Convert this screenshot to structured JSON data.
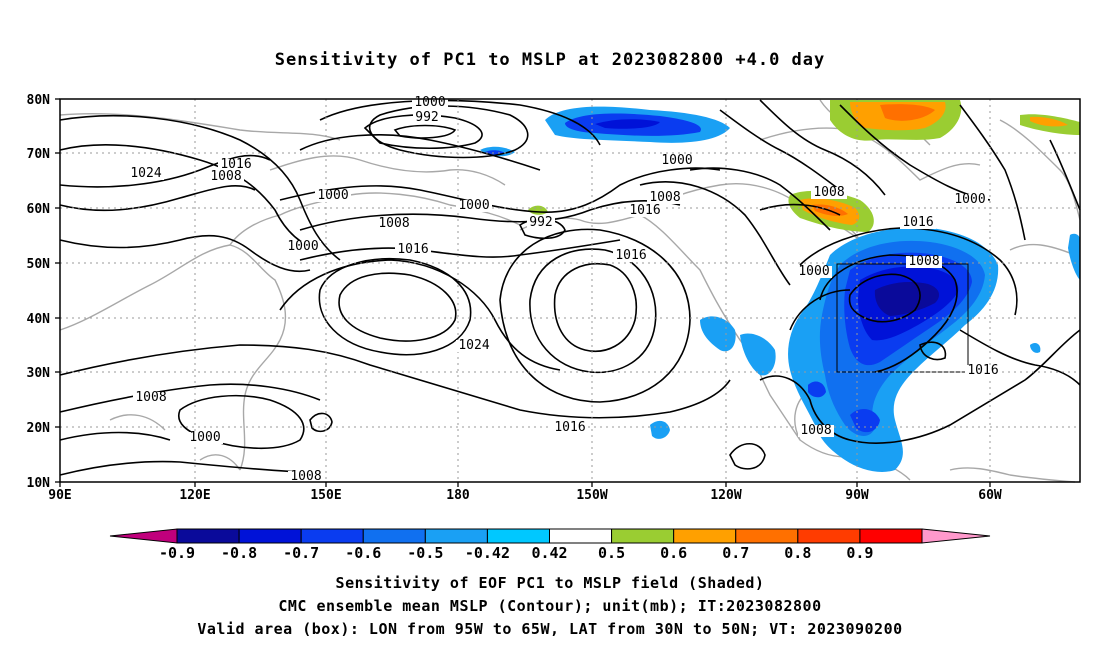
{
  "title": "Sensitivity of PC1 to MSLP at 2023082800 +4.0 day",
  "lat_labels": [
    "80N",
    "70N",
    "60N",
    "50N",
    "40N",
    "30N",
    "20N",
    "10N"
  ],
  "lon_labels": [
    "90E",
    "120E",
    "150E",
    "180",
    "150W",
    "120W",
    "90W",
    "60W"
  ],
  "colorbar": {
    "labels": [
      "-0.9",
      "-0.8",
      "-0.7",
      "-0.6",
      "-0.5",
      "-0.42",
      "0.42",
      "0.5",
      "0.6",
      "0.7",
      "0.8",
      "0.9"
    ],
    "colors": [
      "#c0007c",
      "#0a0a9a",
      "#0012d8",
      "#0a3cf0",
      "#1070f0",
      "#1aa0f4",
      "#00c8ff",
      "#ffffff",
      "#9acd32",
      "#ffa000",
      "#ff7000",
      "#ff3c00",
      "#ff0000",
      "#ff99cc"
    ]
  },
  "contour_labels": [
    "1000",
    "992",
    "1024",
    "1016",
    "1008",
    "1000",
    "1000",
    "1008",
    "1000",
    "992",
    "1008",
    "1016",
    "1016",
    "1016",
    "1024",
    "1016",
    "1008",
    "1000",
    "1000",
    "1008",
    "1000",
    "1016",
    "1008",
    "1016",
    "1008",
    "1000",
    "1008"
  ],
  "box": {
    "lon_min": -95,
    "lon_max": -65,
    "lat_min": 30,
    "lat_max": 50
  },
  "captions": [
    "Sensitivity of EOF PC1 to MSLP field (Shaded)",
    "CMC ensemble mean MSLP (Contour); unit(mb); IT:2023082800",
    "Valid area (box): LON from 95W to 65W, LAT from 30N to 50N; VT: 2023090200"
  ]
}
